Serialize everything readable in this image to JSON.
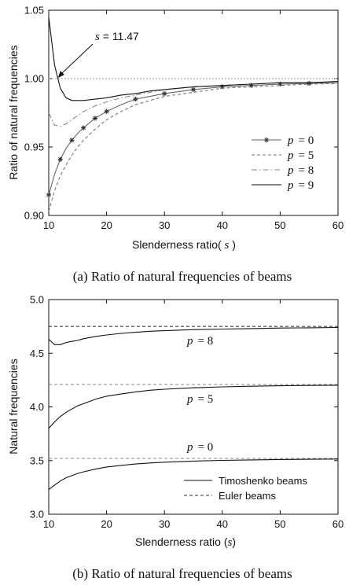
{
  "chart_data": [
    {
      "type": "line",
      "caption": "(a) Ratio of natural frequencies of beams",
      "xlabel": "Slenderness ratio",
      "xlabel_symbol": "s",
      "ylabel": "Ratio of natural frequencies",
      "xlim": [
        10,
        60
      ],
      "ylim": [
        0.9,
        1.05
      ],
      "xticks": [
        "10",
        "20",
        "30",
        "40",
        "50",
        "60"
      ],
      "yticks": [
        "0.90",
        "0.95",
        "1.00",
        "1.05"
      ],
      "grid": false,
      "legend_position": "right",
      "reference_line": 1.0,
      "annotation": {
        "symbol": "s",
        "text": " = 11.47",
        "x": 11.47,
        "y": 1.0
      },
      "x": [
        10,
        11,
        12,
        13,
        14,
        15,
        16,
        18,
        20,
        22.5,
        25,
        27.5,
        30,
        35,
        40,
        45,
        50,
        55,
        60
      ],
      "series": [
        {
          "name": "p = 0",
          "symbol": "p",
          "label_value": "= 0",
          "style": "solid-star",
          "color": "#666666",
          "values": [
            0.915,
            0.93,
            0.941,
            0.949,
            0.955,
            0.96,
            0.964,
            0.971,
            0.976,
            0.981,
            0.985,
            0.987,
            0.989,
            0.992,
            0.994,
            0.995,
            0.996,
            0.9965,
            0.997
          ]
        },
        {
          "name": "p = 5",
          "symbol": "p",
          "label_value": "= 5",
          "style": "dashed",
          "color": "#777777",
          "values": [
            0.903,
            0.918,
            0.929,
            0.937,
            0.944,
            0.95,
            0.955,
            0.963,
            0.97,
            0.976,
            0.981,
            0.984,
            0.987,
            0.99,
            0.993,
            0.994,
            0.995,
            0.996,
            0.9965
          ]
        },
        {
          "name": "p = 8",
          "symbol": "p",
          "label_value": "= 8",
          "style": "dashdot",
          "color": "#888888",
          "values": [
            0.975,
            0.966,
            0.965,
            0.967,
            0.97,
            0.973,
            0.976,
            0.98,
            0.983,
            0.986,
            0.988,
            0.99,
            0.992,
            0.994,
            0.995,
            0.996,
            0.997,
            0.997,
            0.998
          ]
        },
        {
          "name": "p = 9",
          "symbol": "p",
          "label_value": "= 9",
          "style": "solid",
          "color": "#111111",
          "values": [
            1.045,
            1.01,
            0.993,
            0.986,
            0.984,
            0.984,
            0.984,
            0.985,
            0.986,
            0.988,
            0.989,
            0.991,
            0.992,
            0.994,
            0.995,
            0.996,
            0.997,
            0.997,
            0.998
          ]
        }
      ]
    },
    {
      "type": "line",
      "caption": "(b) Ratio of natural frequencies of beams",
      "xlabel": "Slenderness ratio",
      "xlabel_symbol": "s",
      "ylabel": "Natural frequencies",
      "xlim": [
        10,
        60
      ],
      "ylim": [
        3.0,
        5.0
      ],
      "xticks": [
        "10",
        "20",
        "30",
        "40",
        "50",
        "60"
      ],
      "yticks": [
        "3.0",
        "3.5",
        "4.0",
        "4.5",
        "5.0"
      ],
      "grid": false,
      "legend_position": "bottom-right",
      "x": [
        10,
        11,
        12,
        13,
        14,
        15,
        16,
        18,
        20,
        22.5,
        25,
        27.5,
        30,
        35,
        40,
        45,
        50,
        55,
        60
      ],
      "legend": [
        {
          "name": "Timoshenko beams",
          "style": "solid",
          "color": "#111111"
        },
        {
          "name": "Euler beams",
          "style": "dashed",
          "color": "#333333"
        }
      ],
      "groups": [
        {
          "symbol": "p",
          "label_value": "= 8",
          "euler": 4.75,
          "timoshenko": [
            4.63,
            4.58,
            4.58,
            4.6,
            4.61,
            4.62,
            4.635,
            4.655,
            4.67,
            4.685,
            4.695,
            4.705,
            4.71,
            4.72,
            4.725,
            4.73,
            4.735,
            4.737,
            4.74
          ]
        },
        {
          "symbol": "p",
          "label_value": "= 5",
          "euler": 4.21,
          "timoshenko": [
            3.8,
            3.86,
            3.91,
            3.95,
            3.98,
            4.01,
            4.03,
            4.07,
            4.1,
            4.12,
            4.14,
            4.155,
            4.165,
            4.178,
            4.187,
            4.193,
            4.197,
            4.2,
            4.202
          ]
        },
        {
          "symbol": "p",
          "label_value": "= 0",
          "euler": 3.52,
          "timoshenko": [
            3.23,
            3.27,
            3.31,
            3.34,
            3.36,
            3.38,
            3.395,
            3.42,
            3.44,
            3.455,
            3.468,
            3.478,
            3.485,
            3.495,
            3.502,
            3.506,
            3.51,
            3.512,
            3.514
          ]
        }
      ]
    }
  ]
}
